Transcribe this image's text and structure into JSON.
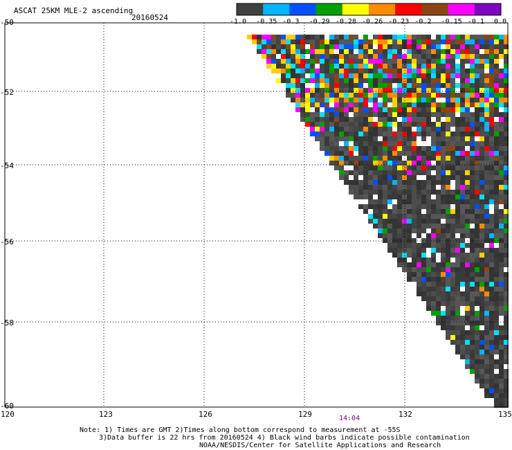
{
  "header": {
    "title": "ASCAT 25KM MLE-2 ascending",
    "date": "20160524"
  },
  "colorbar": {
    "labels": [
      "-1.0",
      "-0.35",
      "-0.3",
      "-0.29",
      "-0.28",
      "-0.26",
      "-0.23",
      "-0.2",
      "-0.15",
      "-0.1",
      "0.0"
    ],
    "colors": [
      "#404040",
      "#00b4ff",
      "#0050ff",
      "#00a000",
      "#ffff00",
      "#ff8c00",
      "#ff0000",
      "#8b4513",
      "#ff00ff",
      "#8000c0"
    ]
  },
  "axes": {
    "lat_labels": [
      "-50",
      "-52",
      "-54",
      "-56",
      "-58",
      "-60"
    ],
    "lon_labels": [
      "120",
      "123",
      "126",
      "129",
      "132",
      "135"
    ]
  },
  "time_label": "14:04",
  "notes": {
    "line1": "Note: 1) Times are GMT 2)Times along bottom correspond to measurement at -55S",
    "line2": "3)Data buffer is 22 hrs from 20160524 4) Black wind barbs indicate possible contamination",
    "line3": "NOAA/NESDIS/Center for Satellite Applications and Research"
  }
}
